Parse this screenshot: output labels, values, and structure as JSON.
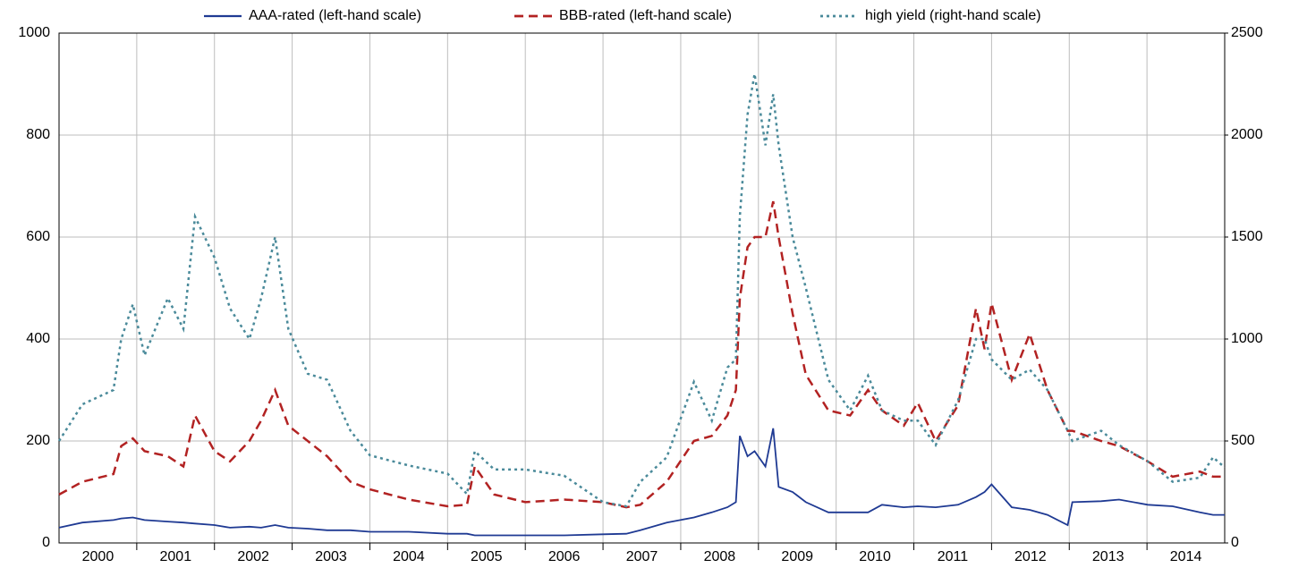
{
  "chart_data": {
    "type": "line",
    "xlim": [
      2000,
      2015
    ],
    "xticks": [
      {
        "value": 2000.5,
        "label": "2000"
      },
      {
        "value": 2001.5,
        "label": "2001"
      },
      {
        "value": 2002.5,
        "label": "2002"
      },
      {
        "value": 2003.5,
        "label": "2003"
      },
      {
        "value": 2004.5,
        "label": "2004"
      },
      {
        "value": 2005.5,
        "label": "2005"
      },
      {
        "value": 2006.5,
        "label": "2006"
      },
      {
        "value": 2007.5,
        "label": "2007"
      },
      {
        "value": 2008.5,
        "label": "2008"
      },
      {
        "value": 2009.5,
        "label": "2009"
      },
      {
        "value": 2010.5,
        "label": "2010"
      },
      {
        "value": 2011.5,
        "label": "2011"
      },
      {
        "value": 2012.5,
        "label": "2012"
      },
      {
        "value": 2013.5,
        "label": "2013"
      },
      {
        "value": 2014.5,
        "label": "2014"
      }
    ],
    "xgrid": [
      2001,
      2002,
      2003,
      2004,
      2005,
      2006,
      2007,
      2008,
      2009,
      2010,
      2011,
      2012,
      2013,
      2014
    ],
    "ylim": [
      0,
      1000
    ],
    "yticks": [
      0,
      200,
      400,
      600,
      800,
      1000
    ],
    "y2lim": [
      0,
      2500
    ],
    "y2ticks": [
      0,
      500,
      1000,
      1500,
      2000,
      2500
    ],
    "grid": true,
    "x": [
      2000.0,
      2000.3,
      2000.7,
      2000.8,
      2000.95,
      2001.1,
      2001.4,
      2001.6,
      2001.75,
      2002.0,
      2002.2,
      2002.45,
      2002.6,
      2002.78,
      2002.95,
      2003.2,
      2003.45,
      2003.75,
      2004.0,
      2004.5,
      2005.0,
      2005.25,
      2005.35,
      2005.6,
      2006.0,
      2006.5,
      2007.0,
      2007.3,
      2007.48,
      2007.82,
      2008.17,
      2008.4,
      2008.6,
      2008.71,
      2008.76,
      2008.86,
      2008.95,
      2009.09,
      2009.19,
      2009.26,
      2009.44,
      2009.61,
      2009.9,
      2010.18,
      2010.41,
      2010.59,
      2010.87,
      2011.05,
      2011.28,
      2011.57,
      2011.8,
      2011.91,
      2012.0,
      2012.26,
      2012.49,
      2012.72,
      2012.98,
      2013.04,
      2013.41,
      2013.64,
      2014.01,
      2014.33,
      2014.68,
      2014.85,
      2015.0
    ],
    "series": [
      {
        "name": "AAA-rated (left-hand scale)",
        "color": "#1f3a93",
        "style": "solid",
        "values": [
          30,
          40,
          45,
          48,
          50,
          45,
          42,
          40,
          38,
          35,
          30,
          32,
          30,
          35,
          30,
          28,
          25,
          25,
          22,
          22,
          18,
          18,
          15,
          15,
          15,
          15,
          17,
          18,
          25,
          40,
          50,
          60,
          70,
          80,
          210,
          170,
          180,
          150,
          225,
          110,
          100,
          80,
          60,
          60,
          60,
          75,
          70,
          72,
          70,
          75,
          90,
          100,
          115,
          70,
          65,
          55,
          35,
          80,
          82,
          85,
          75,
          72,
          60,
          55,
          55
        ]
      },
      {
        "name": "BBB-rated (left-hand scale)",
        "color": "#b22222",
        "style": "dashed",
        "values": [
          95,
          120,
          135,
          190,
          205,
          180,
          170,
          150,
          250,
          180,
          160,
          200,
          240,
          300,
          230,
          200,
          170,
          120,
          105,
          85,
          72,
          75,
          150,
          95,
          80,
          85,
          80,
          70,
          75,
          120,
          200,
          210,
          250,
          300,
          480,
          580,
          600,
          600,
          670,
          600,
          450,
          330,
          260,
          250,
          300,
          260,
          230,
          275,
          200,
          270,
          460,
          380,
          470,
          320,
          410,
          300,
          220,
          220,
          200,
          190,
          160,
          130,
          140,
          130,
          130
        ]
      },
      {
        "name": "high yield (right-hand scale)",
        "color": "#4a8a9a",
        "style": "dotted",
        "axis": "y2",
        "values": [
          500,
          680,
          750,
          1000,
          1170,
          920,
          1200,
          1050,
          1600,
          1400,
          1150,
          1000,
          1200,
          1500,
          1050,
          830,
          800,
          550,
          430,
          380,
          340,
          240,
          450,
          360,
          360,
          330,
          200,
          180,
          300,
          420,
          790,
          600,
          860,
          900,
          1600,
          2100,
          2300,
          1950,
          2200,
          1950,
          1500,
          1250,
          800,
          650,
          820,
          650,
          600,
          600,
          480,
          700,
          1000,
          1000,
          900,
          800,
          850,
          750,
          550,
          500,
          550,
          480,
          400,
          300,
          320,
          420,
          370
        ]
      }
    ]
  }
}
